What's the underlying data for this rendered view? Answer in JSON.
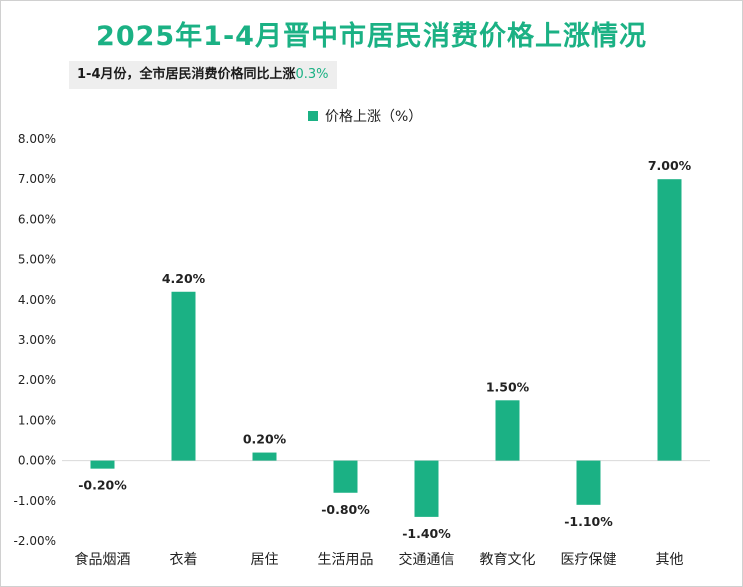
{
  "title": "2025年1-4月晋中市居民消费价格上涨情况",
  "subtitle": {
    "text": "1-4月份，全市居民消费价格同比上涨",
    "value": "0.3%"
  },
  "colors": {
    "bar": "#1bb184",
    "title": "#1bb184"
  },
  "chart_data": {
    "type": "bar",
    "categories": [
      "食品烟酒",
      "衣着",
      "居住",
      "生活用品",
      "交通通信",
      "教育文化",
      "医疗保健",
      "其他"
    ],
    "series": [
      {
        "name": "价格上涨（%）",
        "values": [
          -0.2,
          4.2,
          0.2,
          -0.8,
          -1.4,
          1.5,
          -1.1,
          7.0
        ]
      }
    ],
    "data_labels": [
      "-0.20%",
      "4.20%",
      "0.20%",
      "-0.80%",
      "-1.40%",
      "1.50%",
      "-1.10%",
      "7.00%"
    ],
    "ylim": [
      -2,
      8
    ],
    "yticks": [
      "-2.00%",
      "-1.00%",
      "0.00%",
      "1.00%",
      "2.00%",
      "3.00%",
      "4.00%",
      "5.00%",
      "6.00%",
      "7.00%",
      "8.00%"
    ],
    "legend": "top-center",
    "grid": false
  }
}
